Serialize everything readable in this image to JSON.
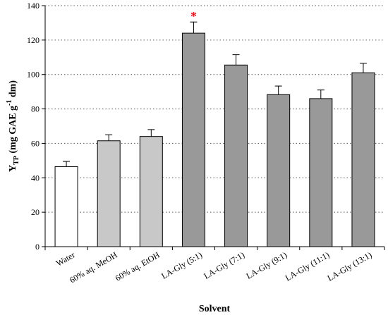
{
  "chart_data": {
    "type": "bar",
    "xlabel": "Solvent",
    "ylabel": {
      "base": "Y",
      "subscript": "TP",
      "text": " (mg GAE g",
      "superscript": "-1",
      "suffix": " dm)"
    },
    "ylim": [
      0,
      140
    ],
    "yticks": [
      "0",
      "20",
      "40",
      "60",
      "80",
      "100",
      "120",
      "140"
    ],
    "grid": "horizontal dotted",
    "categories": [
      "Water",
      "60% aq. MeOH",
      "60% aq. EtOH",
      "LA-Gly (5:1)",
      "LA-Gly (7:1)",
      "LA-Gly (9:1)",
      "LA-Gly (11:1)",
      "LA-Gly (13:1)"
    ],
    "values": [
      46.5,
      61.5,
      64.0,
      124.0,
      105.5,
      88.3,
      86.0,
      101.0
    ],
    "errors": [
      3.0,
      3.5,
      4.0,
      6.5,
      6.0,
      5.0,
      5.0,
      5.5
    ],
    "bar_colors": [
      "#ffffff",
      "#c8c8c8",
      "#c8c8c8",
      "#999999",
      "#999999",
      "#999999",
      "#999999",
      "#999999"
    ],
    "annotations": [
      {
        "category_index": 3,
        "text": "*",
        "color": "#e8141e"
      }
    ]
  }
}
